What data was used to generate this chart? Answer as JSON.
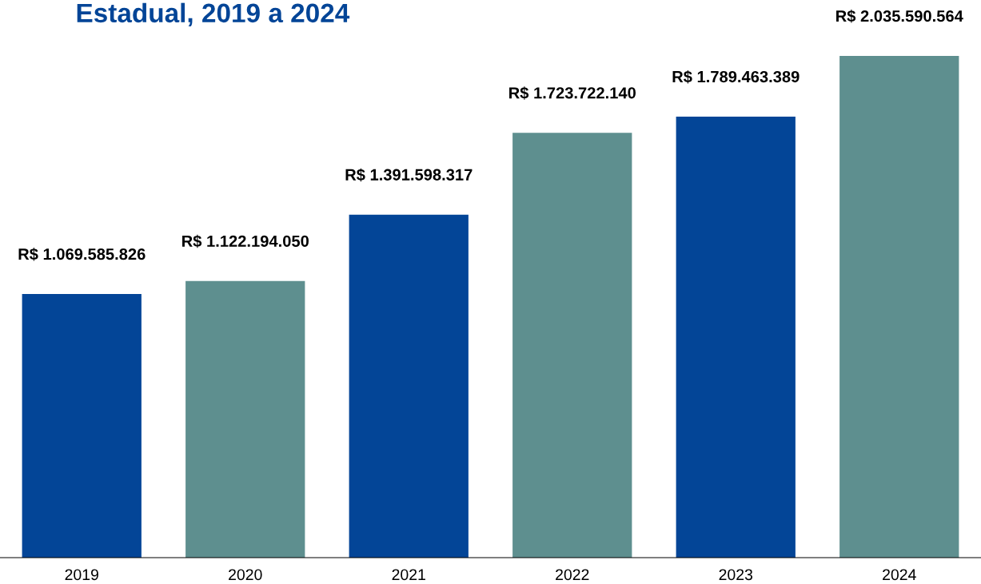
{
  "chart_data": {
    "type": "bar",
    "title": "Estadual, 2019 a 2024",
    "categories": [
      "2019",
      "2020",
      "2021",
      "2022",
      "2023",
      "2024"
    ],
    "values": [
      1069585826,
      1122194050,
      1391598317,
      1723722140,
      1789463389,
      2035590564
    ],
    "colors": [
      "#034597",
      "#5e8f8f",
      "#034597",
      "#5e8f8f",
      "#034597",
      "#5e8f8f"
    ],
    "value_labels": [
      "R$ 1.069.585.826",
      "R$ 1.122.194.050",
      "R$ 1.391.598.317",
      "R$ 1.723.722.140",
      "R$ 1.789.463.389",
      "R$ 2.035.590.564"
    ],
    "grid": false,
    "legend": false
  }
}
